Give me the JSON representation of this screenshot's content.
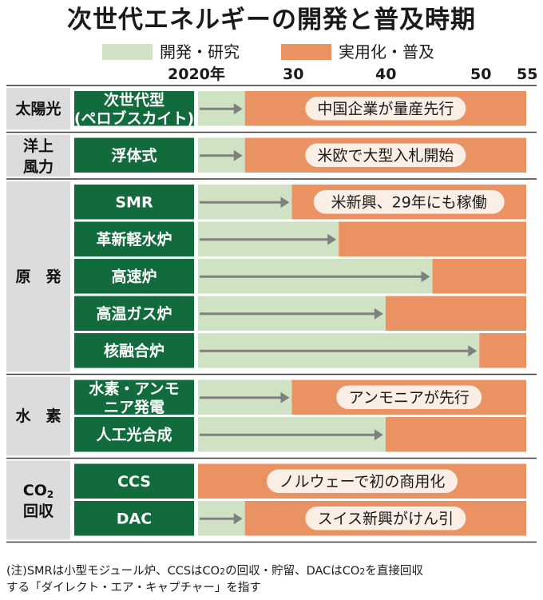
{
  "title": "次世代エネルギーの開発と普及時期",
  "legend": {
    "rd_label": "開発・研究",
    "use_label": "実用化・普及"
  },
  "colors": {
    "rd": "#cfe3c4",
    "use": "#eb9262",
    "row_label_bg": "#126b3c",
    "group_bg": "#dcdcdc",
    "arrow": "#808080",
    "callout_bg": "#fbeee4"
  },
  "chart_data": {
    "type": "timeline",
    "x_axis": {
      "range": [
        2020,
        2055
      ],
      "tick_values": [
        2020,
        2030,
        2040,
        2050,
        2055
      ],
      "tick_labels": [
        "2020年",
        "30",
        "40",
        "50",
        "55"
      ]
    },
    "groups": [
      {
        "label": "太陽光",
        "rows": [
          {
            "label": "次世代型",
            "label2": "(ペロブスカイト)",
            "rd_until": 2025,
            "note": "中国企業が量産先行"
          }
        ]
      },
      {
        "label": "洋上",
        "label2": "風力",
        "rows": [
          {
            "label": "浮体式",
            "rd_until": 2025,
            "note": "米欧で大型入札開始"
          }
        ]
      },
      {
        "label": "原　発",
        "rows": [
          {
            "label": "SMR",
            "rd_until": 2030,
            "note": "米新興、29年にも稼働"
          },
          {
            "label": "革新軽水炉",
            "rd_until": 2035,
            "note": ""
          },
          {
            "label": "高速炉",
            "rd_until": 2045,
            "note": ""
          },
          {
            "label": "高温ガス炉",
            "rd_until": 2040,
            "note": ""
          },
          {
            "label": "核融合炉",
            "rd_until": 2050,
            "note": ""
          }
        ]
      },
      {
        "label": "水　素",
        "rows": [
          {
            "label": "水素・アンモ",
            "label2": "ニア発電",
            "rd_until": 2030,
            "note": "アンモニアが先行"
          },
          {
            "label": "人工光合成",
            "rd_until": 2040,
            "note": ""
          }
        ]
      },
      {
        "label": "CO",
        "label_sub": "2",
        "label2": "回収",
        "rows": [
          {
            "label": "CCS",
            "rd_until": 2020,
            "note": "ノルウェーで初の商用化"
          },
          {
            "label": "DAC",
            "rd_until": 2025,
            "note": "スイス新興がけん引"
          }
        ]
      }
    ]
  },
  "footnote": {
    "l1a": "(注)SMRは小型モジュール炉、CCSはCO",
    "sub": "2",
    "l1b": "の回収・貯留、DACはCO",
    "l1c": "を直接回収",
    "l2": "する「ダイレクト・エア・キャプチャー」を指す"
  }
}
